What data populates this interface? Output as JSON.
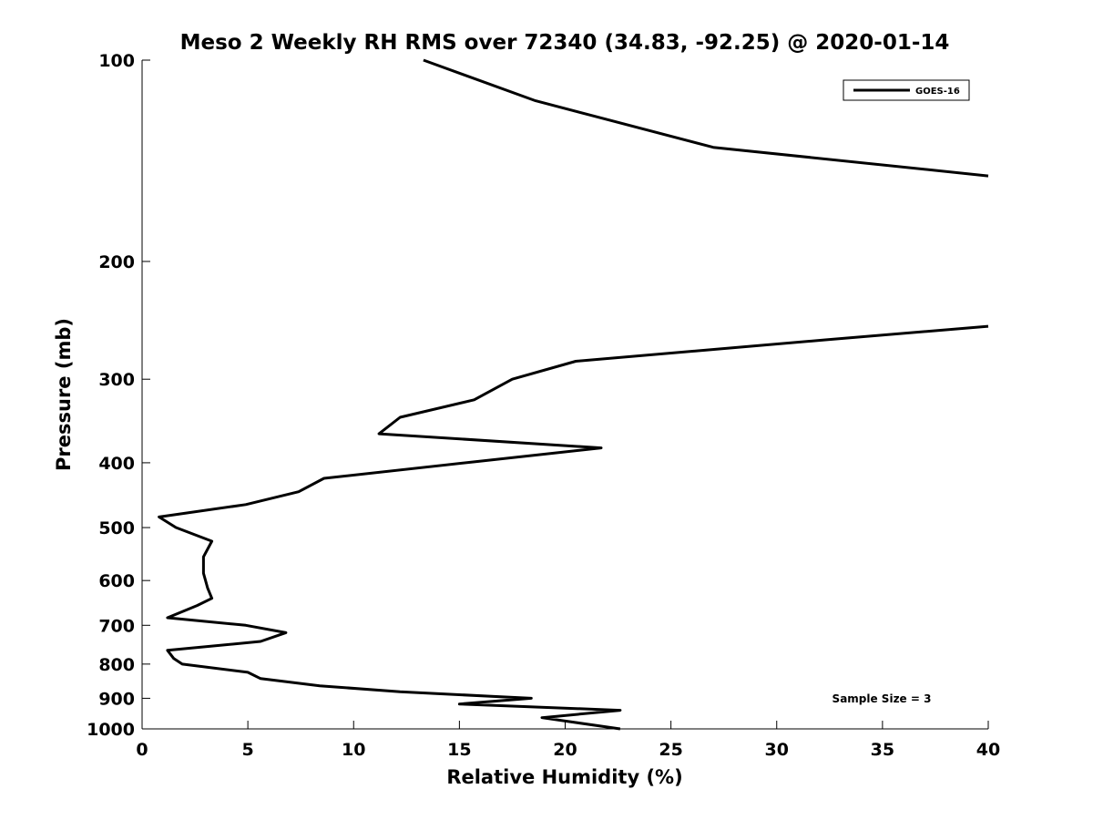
{
  "chart_data": {
    "type": "line",
    "title": "Meso 2 Weekly RH RMS over 72340 (34.83, -92.25) @ 2020-01-14",
    "xlabel": "Relative Humidity (%)",
    "ylabel": "Pressure (mb)",
    "xlim": [
      0,
      40
    ],
    "ylim": [
      100,
      1000
    ],
    "y_scale": "log",
    "y_reversed": true,
    "grid": false,
    "legend_position": "top-right",
    "x_ticks": [
      0,
      5,
      10,
      15,
      20,
      25,
      30,
      35,
      40
    ],
    "x_tick_labels": [
      "0",
      "5",
      "10",
      "15",
      "20",
      "25",
      "30",
      "35",
      "40"
    ],
    "y_ticks": [
      100,
      200,
      300,
      400,
      500,
      600,
      700,
      800,
      900,
      1000
    ],
    "y_tick_labels": [
      "100",
      "200",
      "300",
      "400",
      "500",
      "600",
      "700",
      "800",
      "900",
      "1000"
    ],
    "series": [
      {
        "name": "GOES-16",
        "color": "#000000",
        "segments": [
          [
            {
              "x": 13.3,
              "p": 100
            },
            {
              "x": 18.6,
              "p": 115
            },
            {
              "x": 27.0,
              "p": 135
            },
            {
              "x": 40.0,
              "p": 149
            }
          ],
          [
            {
              "x": 40.0,
              "p": 250
            },
            {
              "x": 32.3,
              "p": 262
            },
            {
              "x": 20.5,
              "p": 282
            },
            {
              "x": 17.5,
              "p": 300
            },
            {
              "x": 15.7,
              "p": 322
            },
            {
              "x": 12.2,
              "p": 342
            },
            {
              "x": 11.2,
              "p": 362
            },
            {
              "x": 21.7,
              "p": 380
            },
            {
              "x": 8.6,
              "p": 422
            },
            {
              "x": 7.4,
              "p": 442
            },
            {
              "x": 4.9,
              "p": 462
            },
            {
              "x": 0.8,
              "p": 482
            },
            {
              "x": 1.6,
              "p": 500
            },
            {
              "x": 3.3,
              "p": 524
            },
            {
              "x": 2.9,
              "p": 553
            },
            {
              "x": 2.9,
              "p": 585
            },
            {
              "x": 3.1,
              "p": 616
            },
            {
              "x": 3.3,
              "p": 638
            },
            {
              "x": 2.6,
              "p": 654
            },
            {
              "x": 1.2,
              "p": 682
            },
            {
              "x": 4.9,
              "p": 700
            },
            {
              "x": 6.8,
              "p": 718
            },
            {
              "x": 5.6,
              "p": 740
            },
            {
              "x": 1.2,
              "p": 763
            },
            {
              "x": 1.5,
              "p": 785
            },
            {
              "x": 1.9,
              "p": 800
            },
            {
              "x": 5.0,
              "p": 823
            },
            {
              "x": 5.6,
              "p": 841
            },
            {
              "x": 8.4,
              "p": 862
            },
            {
              "x": 12.2,
              "p": 880
            },
            {
              "x": 18.4,
              "p": 900
            },
            {
              "x": 15.0,
              "p": 918
            },
            {
              "x": 22.6,
              "p": 938
            },
            {
              "x": 18.9,
              "p": 962
            },
            {
              "x": 22.6,
              "p": 1000
            }
          ]
        ]
      }
    ],
    "annotations": [
      {
        "text": "Sample Size = 3",
        "position": "bottom-right"
      }
    ]
  }
}
